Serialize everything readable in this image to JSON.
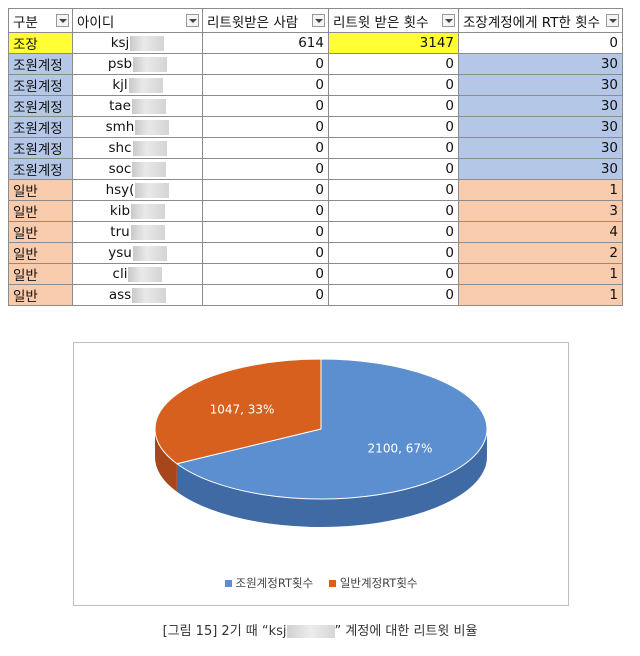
{
  "table": {
    "headers": [
      "구분",
      "아이디",
      "리트윗받은 사람",
      "리트윗 받은 횟수",
      "조장계정에게 RT한 횟수"
    ],
    "rows": [
      {
        "type": "조장",
        "id": "ksj",
        "received_people": "614",
        "received_count": "3147",
        "rt_to_leader": "0",
        "color": "#ffff33"
      },
      {
        "type": "조원계정",
        "id": "psb",
        "received_people": "0",
        "received_count": "0",
        "rt_to_leader": "30",
        "color": "#b4c7e7"
      },
      {
        "type": "조원계정",
        "id": "kjl",
        "received_people": "0",
        "received_count": "0",
        "rt_to_leader": "30",
        "color": "#b4c7e7"
      },
      {
        "type": "조원계정",
        "id": "tae",
        "received_people": "0",
        "received_count": "0",
        "rt_to_leader": "30",
        "color": "#b4c7e7"
      },
      {
        "type": "조원계정",
        "id": "smh",
        "received_people": "0",
        "received_count": "0",
        "rt_to_leader": "30",
        "color": "#b4c7e7"
      },
      {
        "type": "조원계정",
        "id": "shc",
        "received_people": "0",
        "received_count": "0",
        "rt_to_leader": "30",
        "color": "#b4c7e7"
      },
      {
        "type": "조원계정",
        "id": "soc",
        "received_people": "0",
        "received_count": "0",
        "rt_to_leader": "30",
        "color": "#b4c7e7"
      },
      {
        "type": "일반",
        "id": "hsy(",
        "received_people": "0",
        "received_count": "0",
        "rt_to_leader": "1",
        "color": "#f8cbad"
      },
      {
        "type": "일반",
        "id": "kib",
        "received_people": "0",
        "received_count": "0",
        "rt_to_leader": "3",
        "color": "#f8cbad"
      },
      {
        "type": "일반",
        "id": "tru",
        "received_people": "0",
        "received_count": "0",
        "rt_to_leader": "4",
        "color": "#f8cbad"
      },
      {
        "type": "일반",
        "id": "ysu",
        "received_people": "0",
        "received_count": "0",
        "rt_to_leader": "2",
        "color": "#f8cbad"
      },
      {
        "type": "일반",
        "id": "cli",
        "received_people": "0",
        "received_count": "0",
        "rt_to_leader": "1",
        "color": "#f8cbad"
      },
      {
        "type": "일반",
        "id": "ass",
        "received_people": "0",
        "received_count": "0",
        "rt_to_leader": "1",
        "color": "#f8cbad"
      }
    ]
  },
  "chart_data": {
    "type": "pie",
    "title": "",
    "categories": [
      "조원계정RT횟수",
      "일반계정RT횟수"
    ],
    "values": [
      2100,
      1047
    ],
    "labels": [
      "2100, 67%",
      "1047, 33%"
    ],
    "colors": [
      "#5b8fd0",
      "#d8601f"
    ],
    "legend": "bottom"
  },
  "caption": {
    "prefix": "[그림 15] 2기 때 “ksj",
    "suffix": "” 계정에 대한 리트윗 비율"
  }
}
